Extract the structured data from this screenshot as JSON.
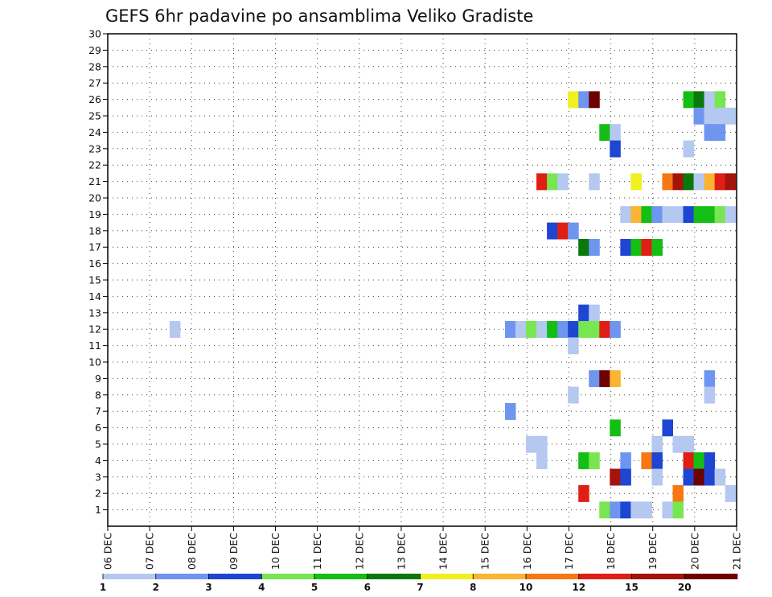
{
  "chart_data": {
    "type": "heatmap",
    "title": "GEFS 6hr padavine po ansamblima Veliko Gradiste",
    "xlabel": "",
    "ylabel": "",
    "x_tick_labels": [
      "06 DEC",
      "07 DEC",
      "08 DEC",
      "09 DEC",
      "10 DEC",
      "11 DEC",
      "12 DEC",
      "13 DEC",
      "14 DEC",
      "15 DEC",
      "16 DEC",
      "17 DEC",
      "18 DEC",
      "19 DEC",
      "20 DEC",
      "21 DEC"
    ],
    "x_range_days": [
      0,
      15
    ],
    "y_tick_labels": [
      "1",
      "2",
      "3",
      "4",
      "5",
      "6",
      "7",
      "8",
      "9",
      "10",
      "11",
      "12",
      "13",
      "14",
      "15",
      "16",
      "17",
      "18",
      "19",
      "20",
      "21",
      "22",
      "23",
      "24",
      "25",
      "26",
      "27",
      "28",
      "29",
      "30"
    ],
    "y_range_members": [
      0,
      30
    ],
    "grid": "dotted",
    "color_scale": {
      "colors": [
        "#b4c8f0",
        "#6e96f0",
        "#1e46d2",
        "#78e650",
        "#14be14",
        "#0a780a",
        "#f0f01e",
        "#fab432",
        "#f57814",
        "#e11e14",
        "#a5140a",
        "#6e0000"
      ],
      "boundaries": [
        "1",
        "2",
        "3",
        "4",
        "5",
        "6",
        "7",
        "8",
        "10",
        "12",
        "15",
        "20"
      ]
    },
    "cells": [
      [
        11.1,
        26,
        6
      ],
      [
        11.35,
        26,
        1
      ],
      [
        11.6,
        26,
        11
      ],
      [
        13.85,
        26,
        4
      ],
      [
        14.1,
        26,
        5
      ],
      [
        14.35,
        26,
        0
      ],
      [
        14.6,
        26,
        3
      ],
      [
        14.1,
        25,
        1
      ],
      [
        14.35,
        25,
        0
      ],
      [
        14.6,
        25,
        0
      ],
      [
        14.85,
        25,
        0
      ],
      [
        11.85,
        24,
        4
      ],
      [
        12.1,
        24,
        0
      ],
      [
        14.35,
        24,
        1
      ],
      [
        14.6,
        24,
        1
      ],
      [
        12.1,
        23,
        2
      ],
      [
        13.85,
        23,
        0
      ],
      [
        10.35,
        21,
        9
      ],
      [
        10.6,
        21,
        3
      ],
      [
        10.85,
        21,
        0
      ],
      [
        11.6,
        21,
        0
      ],
      [
        12.6,
        21,
        6
      ],
      [
        13.35,
        21,
        8
      ],
      [
        13.6,
        21,
        10
      ],
      [
        13.85,
        21,
        5
      ],
      [
        14.1,
        21,
        0
      ],
      [
        14.35,
        21,
        7
      ],
      [
        14.6,
        21,
        9
      ],
      [
        14.85,
        21,
        10
      ],
      [
        12.35,
        19,
        0
      ],
      [
        12.6,
        19,
        7
      ],
      [
        12.85,
        19,
        4
      ],
      [
        13.1,
        19,
        1
      ],
      [
        13.35,
        19,
        0
      ],
      [
        13.6,
        19,
        0
      ],
      [
        13.85,
        19,
        2
      ],
      [
        14.1,
        19,
        4
      ],
      [
        14.35,
        19,
        4
      ],
      [
        14.6,
        19,
        3
      ],
      [
        14.85,
        19,
        0
      ],
      [
        10.6,
        18,
        2
      ],
      [
        10.85,
        18,
        9
      ],
      [
        11.1,
        18,
        1
      ],
      [
        11.35,
        17,
        5
      ],
      [
        11.6,
        17,
        1
      ],
      [
        12.35,
        17,
        2
      ],
      [
        12.6,
        17,
        4
      ],
      [
        12.85,
        17,
        9
      ],
      [
        13.1,
        17,
        4
      ],
      [
        11.35,
        13,
        2
      ],
      [
        11.6,
        13,
        0
      ],
      [
        1.6,
        12,
        0
      ],
      [
        9.6,
        12,
        1
      ],
      [
        9.85,
        12,
        0
      ],
      [
        10.1,
        12,
        3
      ],
      [
        10.35,
        12,
        0
      ],
      [
        10.6,
        12,
        4
      ],
      [
        10.85,
        12,
        1
      ],
      [
        11.1,
        12,
        2
      ],
      [
        11.35,
        12,
        3
      ],
      [
        11.6,
        12,
        3
      ],
      [
        11.85,
        12,
        9
      ],
      [
        12.1,
        12,
        1
      ],
      [
        11.1,
        11,
        0
      ],
      [
        11.6,
        9,
        1
      ],
      [
        11.85,
        9,
        11
      ],
      [
        12.1,
        9,
        7
      ],
      [
        14.35,
        9,
        1
      ],
      [
        11.1,
        8,
        0
      ],
      [
        14.35,
        8,
        0
      ],
      [
        9.6,
        7,
        1
      ],
      [
        12.1,
        6,
        4
      ],
      [
        13.35,
        6,
        2
      ],
      [
        10.1,
        5,
        0
      ],
      [
        10.35,
        5,
        0
      ],
      [
        13.1,
        5,
        0
      ],
      [
        13.6,
        5,
        0
      ],
      [
        13.85,
        5,
        0
      ],
      [
        10.35,
        4,
        0
      ],
      [
        11.35,
        4,
        4
      ],
      [
        11.6,
        4,
        3
      ],
      [
        12.35,
        4,
        1
      ],
      [
        12.85,
        4,
        8
      ],
      [
        13.1,
        4,
        2
      ],
      [
        13.85,
        4,
        9
      ],
      [
        14.1,
        4,
        4
      ],
      [
        14.35,
        4,
        2
      ],
      [
        12.1,
        3,
        10
      ],
      [
        12.35,
        3,
        2
      ],
      [
        13.1,
        3,
        0
      ],
      [
        13.85,
        3,
        2
      ],
      [
        14.1,
        3,
        11
      ],
      [
        14.35,
        3,
        2
      ],
      [
        14.6,
        3,
        0
      ],
      [
        11.35,
        2,
        9
      ],
      [
        13.6,
        2,
        8
      ],
      [
        14.85,
        2,
        0
      ],
      [
        11.85,
        1,
        3
      ],
      [
        12.1,
        1,
        1
      ],
      [
        12.35,
        1,
        2
      ],
      [
        12.6,
        1,
        0
      ],
      [
        12.85,
        1,
        0
      ],
      [
        13.35,
        1,
        0
      ],
      [
        13.6,
        1,
        3
      ]
    ]
  }
}
